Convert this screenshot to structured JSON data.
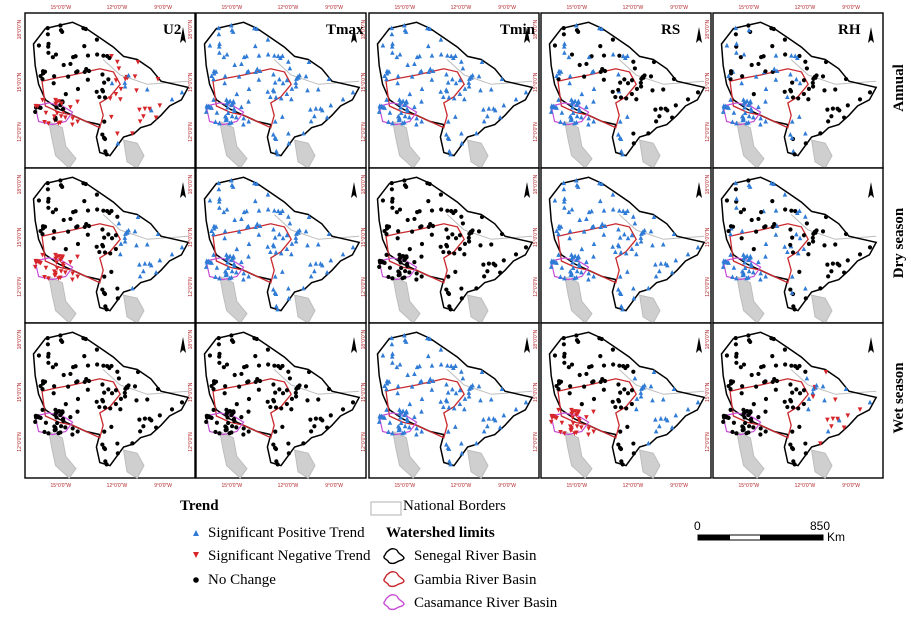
{
  "columns": [
    "U2",
    "Tmax",
    "Tmin",
    "RS",
    "RH"
  ],
  "rows": [
    "Annual",
    "Dry season",
    "Wet season"
  ],
  "lat_ticks": [
    "18°0'0\"N",
    "15°0'0\"N",
    "12°0'0\"N"
  ],
  "lon_ticks": [
    "15°0'0\"W",
    "12°0'0\"W",
    "9°0'0\"W"
  ],
  "panel_states": [
    [
      "mixed_red_black",
      "blue",
      "blue",
      "black_blue",
      "black_blue"
    ],
    [
      "red_black",
      "blue",
      "black",
      "blue",
      "black_blue"
    ],
    [
      "black",
      "black",
      "blue",
      "red_black",
      "black_red"
    ]
  ],
  "legend": {
    "trend_title": "Trend",
    "positive": "Significant Positive Trend",
    "negative": "Significant Negative Trend",
    "nochange": "No Change",
    "national_borders": "National Borders",
    "watershed_title": "Watershed limits",
    "senegal": "Senegal River Basin",
    "gambia": "Gambia River Basin",
    "casamance": "Casamance River Basin"
  },
  "scale": {
    "zero": "0",
    "max": "850",
    "unit": "Km"
  },
  "colors": {
    "positive": "#2f7bd6",
    "negative": "#d6262a",
    "nochange": "#000000",
    "senegal": "#000000",
    "gambia": "#c8282d",
    "casamance": "#c84dd6",
    "borders": "#bdbdbd",
    "tick": "#b3262a"
  }
}
